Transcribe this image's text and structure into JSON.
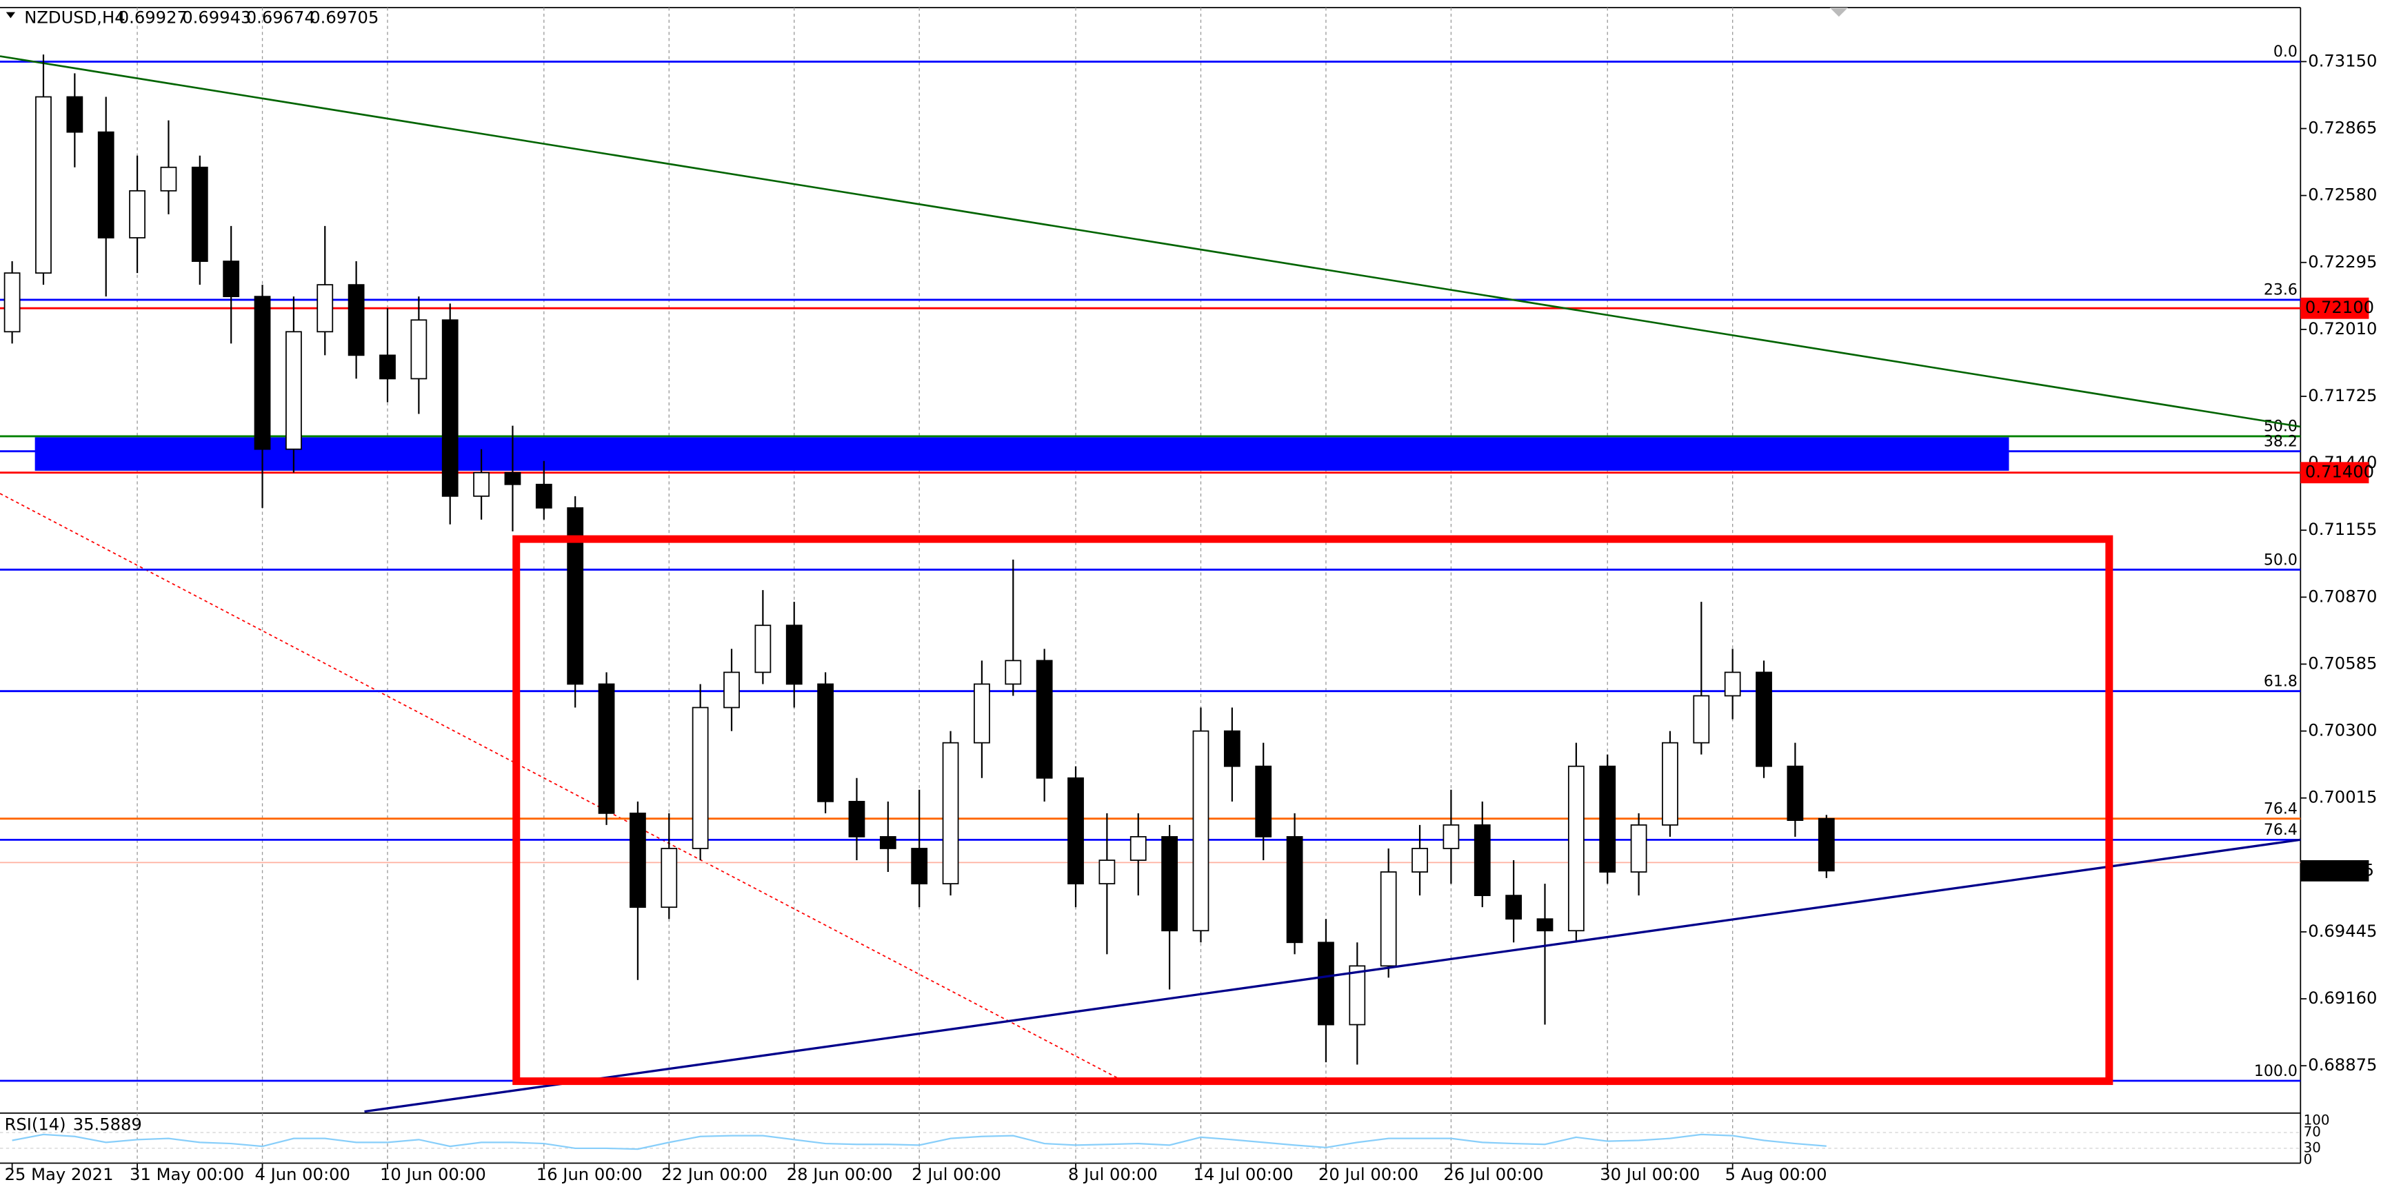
{
  "chart_data": {
    "type": "candlestick",
    "title": "NZDUSD,H4",
    "categories": [
      "25 May 2021",
      null,
      null,
      null,
      "31 May 00:00",
      null,
      null,
      null,
      "4 Jun 00:00",
      null,
      null,
      null,
      "10 Jun 00:00",
      null,
      null,
      null,
      null,
      "16 Jun 00:00",
      null,
      null,
      null,
      "22 Jun 00:00",
      null,
      null,
      null,
      "28 Jun 00:00",
      null,
      null,
      null,
      "2 Jul 00:00",
      null,
      null,
      null,
      null,
      "8 Jul 00:00",
      null,
      null,
      null,
      "14 Jul 00:00",
      null,
      null,
      null,
      "20 Jul 00:00",
      null,
      null,
      null,
      "26 Jul 00:00",
      null,
      null,
      null,
      null,
      "30 Jul 00:00",
      null,
      null,
      null,
      "5 Aug 00:00",
      null,
      null,
      null
    ],
    "open": [
      0.72,
      0.7225,
      0.73,
      0.7285,
      0.724,
      0.726,
      0.727,
      0.723,
      0.7215,
      0.715,
      0.72,
      0.722,
      0.719,
      0.718,
      0.7205,
      0.713,
      0.714,
      0.7135,
      0.7125,
      0.705,
      0.6995,
      0.6955,
      0.698,
      0.704,
      0.7055,
      0.7075,
      0.705,
      0.7,
      0.6985,
      0.698,
      0.6965,
      0.7025,
      0.705,
      0.706,
      0.701,
      0.6965,
      0.6975,
      0.6985,
      0.6945,
      0.703,
      0.7015,
      0.6985,
      0.694,
      0.6905,
      0.693,
      0.697,
      0.698,
      0.699,
      0.696,
      0.695,
      0.6945,
      0.7015,
      0.697,
      0.699,
      0.7025,
      0.7045,
      0.7055,
      0.7015,
      0.69927
    ],
    "high": [
      0.723,
      0.7318,
      0.731,
      0.73,
      0.7275,
      0.729,
      0.7275,
      0.7245,
      0.722,
      0.7215,
      0.7245,
      0.723,
      0.721,
      0.7215,
      0.7212,
      0.715,
      0.716,
      0.7145,
      0.713,
      0.7055,
      0.7,
      0.6995,
      0.705,
      0.7065,
      0.709,
      0.7085,
      0.7055,
      0.701,
      0.7,
      0.7005,
      0.703,
      0.706,
      0.7103,
      0.7065,
      0.7015,
      0.6995,
      0.6995,
      0.699,
      0.704,
      0.704,
      0.7025,
      0.6995,
      0.695,
      0.694,
      0.698,
      0.699,
      0.7005,
      0.7,
      0.6975,
      0.6965,
      0.7025,
      0.702,
      0.6995,
      0.703,
      0.7085,
      0.7065,
      0.706,
      0.7025,
      0.69943
    ],
    "low": [
      0.7195,
      0.722,
      0.727,
      0.7215,
      0.7225,
      0.725,
      0.722,
      0.7195,
      0.7125,
      0.714,
      0.719,
      0.718,
      0.717,
      0.7165,
      0.7118,
      0.712,
      0.7115,
      0.712,
      0.704,
      0.699,
      0.6924,
      0.695,
      0.6975,
      0.703,
      0.705,
      0.704,
      0.6995,
      0.6975,
      0.697,
      0.6955,
      0.696,
      0.701,
      0.7045,
      0.7,
      0.6955,
      0.6935,
      0.696,
      0.692,
      0.694,
      0.7,
      0.6975,
      0.6935,
      0.6889,
      0.6888,
      0.6925,
      0.696,
      0.6965,
      0.6955,
      0.694,
      0.6905,
      0.694,
      0.6965,
      0.696,
      0.6985,
      0.702,
      0.7035,
      0.701,
      0.6985,
      0.69674
    ],
    "close": [
      0.7225,
      0.73,
      0.7285,
      0.724,
      0.726,
      0.727,
      0.723,
      0.7215,
      0.715,
      0.72,
      0.722,
      0.719,
      0.718,
      0.7205,
      0.713,
      0.714,
      0.7135,
      0.7125,
      0.705,
      0.6995,
      0.6955,
      0.698,
      0.704,
      0.7055,
      0.7075,
      0.705,
      0.7,
      0.6985,
      0.698,
      0.6965,
      0.7025,
      0.705,
      0.706,
      0.701,
      0.6965,
      0.6975,
      0.6985,
      0.6945,
      0.703,
      0.7015,
      0.6985,
      0.694,
      0.6905,
      0.693,
      0.697,
      0.698,
      0.699,
      0.696,
      0.695,
      0.6945,
      0.7015,
      0.697,
      0.699,
      0.7025,
      0.7045,
      0.7055,
      0.7015,
      0.6992,
      0.69705
    ],
    "colors": {
      "up": "#ffffff",
      "down": "#000000",
      "outline": "#000000"
    },
    "ylim": [
      0.6868,
      0.7338
    ],
    "yticks": [
      {
        "value": 0.7315,
        "label": "0.73150"
      },
      0.72865,
      {
        "value": 0.7258,
        "label": "0.72580"
      },
      0.72295,
      {
        "value": 0.7201,
        "label": "0.72010"
      },
      0.71725,
      {
        "value": 0.7144,
        "label": "0.71440"
      },
      0.71155,
      {
        "value": 0.7087,
        "label": "0.70870"
      },
      0.70585,
      {
        "value": 0.703,
        "label": "0.70300"
      },
      0.70015,
      0.69445,
      {
        "value": 0.6916,
        "label": "0.69160"
      },
      0.68875
    ],
    "grid": true,
    "levels": [
      {
        "label": "0.0",
        "value": 0.7315,
        "color": "#0000ff"
      },
      {
        "label": "23.6",
        "value": 0.72136,
        "color": "#0000ff"
      },
      {
        "label": "50.0",
        "value": 0.71555,
        "color": "#008000"
      },
      {
        "label": "38.2",
        "value": 0.71491,
        "color": "#0000ff"
      },
      {
        "label": "50.0",
        "value": 0.70987,
        "color": "#0000ff"
      },
      {
        "label": "61.8",
        "value": 0.7047,
        "color": "#0000ff"
      },
      {
        "label": "76.4",
        "value": 0.69927,
        "color": "#ff6600"
      },
      {
        "label": "76.4",
        "value": 0.69837,
        "color": "#0000ff"
      },
      {
        "label": "100.0",
        "value": 0.68811,
        "color": "#0000ff"
      }
    ],
    "price_lines": [
      {
        "value": 0.721,
        "label": "0.72100",
        "color": "#ff0000"
      },
      {
        "value": 0.714,
        "label": "0.71400",
        "color": "#ff0000"
      }
    ],
    "rsi": {
      "title": "RSI(14)",
      "color": "#87cefa",
      "ylim": [
        0,
        100
      ],
      "yticks": [
        0,
        30,
        70,
        100
      ],
      "values": [
        50,
        65,
        60,
        45,
        52,
        55,
        45,
        42,
        35,
        55,
        55,
        45,
        45,
        52,
        35,
        45,
        45,
        42,
        30,
        30,
        28,
        45,
        60,
        62,
        62,
        52,
        42,
        40,
        40,
        38,
        55,
        60,
        62,
        42,
        38,
        40,
        42,
        38,
        58,
        52,
        45,
        38,
        32,
        45,
        55,
        55,
        55,
        45,
        42,
        40,
        58,
        48,
        50,
        55,
        65,
        62,
        50,
        42,
        35.5889
      ]
    }
  }
}
